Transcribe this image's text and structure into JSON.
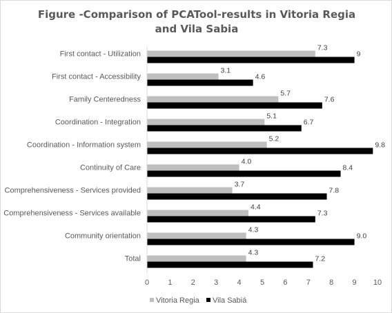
{
  "chart_data": {
    "type": "bar",
    "orientation": "horizontal",
    "title": "Figure -Comparison of PCATool-results in Vitoria Regia and Vila Sabia",
    "categories": [
      "First contact - Utilization",
      "First contact - Accessibility",
      "Family Centeredness",
      "Coordination - Integration",
      "Coordination - Information system",
      "Continuity of Care",
      "Comprehensiveness - Services provided",
      "Comprehensiveness - Services available",
      "Community orientation",
      "Total"
    ],
    "series": [
      {
        "name": "Vitoria Regia",
        "color": "#bfbfbf",
        "values": [
          7.3,
          3.1,
          5.7,
          5.1,
          5.2,
          4.0,
          3.7,
          4.4,
          4.3,
          4.3
        ],
        "labels": [
          "7.3",
          "3.1",
          "5.7",
          "5.1",
          "5.2",
          "4.0",
          "3.7",
          "4.4",
          "4.3",
          "4.3"
        ]
      },
      {
        "name": "Vila Sabiá",
        "color": "#000000",
        "values": [
          9,
          4.6,
          7.6,
          6.7,
          9.8,
          8.4,
          7.8,
          7.3,
          9.0,
          7.2
        ],
        "labels": [
          "9",
          "4.6",
          "7.6",
          "6.7",
          "9.8",
          "8.4",
          "7.8",
          "7.3",
          "9.0",
          "7.2"
        ]
      }
    ],
    "xlim": [
      0,
      10
    ],
    "xticks": [
      "0",
      "1",
      "2",
      "3",
      "4",
      "5",
      "6",
      "7",
      "8",
      "9",
      "10"
    ],
    "grid": false,
    "legend_position": "bottom"
  }
}
